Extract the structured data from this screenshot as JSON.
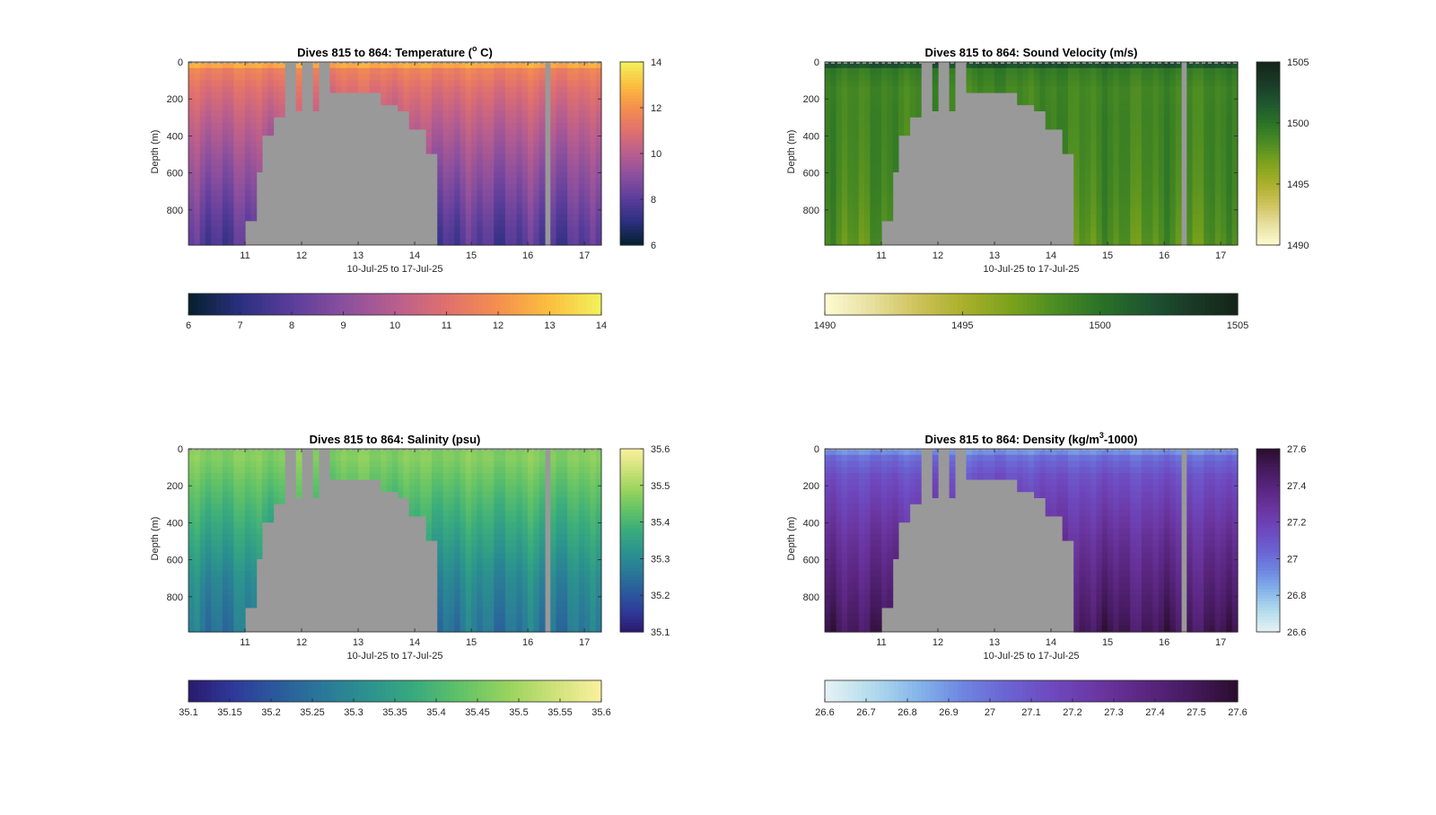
{
  "figure": {
    "background": "#ffffff",
    "panel_bg": "#999999",
    "dive_range": "Dives 815 to 864"
  },
  "chart_data": [
    {
      "type": "heatmap",
      "id": "temperature",
      "title": "Dives 815 to 864: Temperature (",
      "title_sup": "o",
      "title_tail": " C)",
      "xlabel": "10-Jul-25 to 17-Jul-25",
      "ylabel": "Depth (m)",
      "x_ticks": [
        "11",
        "12",
        "13",
        "14",
        "15",
        "16",
        "17"
      ],
      "x_tick_values": [
        11,
        12,
        13,
        14,
        15,
        16,
        17
      ],
      "xlim": [
        10.0,
        17.3
      ],
      "y_ticks": [
        "0",
        "200",
        "400",
        "600",
        "800"
      ],
      "y_tick_values": [
        0,
        200,
        400,
        600,
        800
      ],
      "ylim": [
        0,
        990
      ],
      "colorbar_range": [
        6,
        14
      ],
      "colorbar_ticks": [
        "6",
        "8",
        "10",
        "12",
        "14"
      ],
      "h_colorbar_ticks": [
        "6",
        "7",
        "8",
        "9",
        "10",
        "11",
        "12",
        "13",
        "14"
      ],
      "colormap": [
        "#04202c",
        "#2b2f7e",
        "#5a3d9b",
        "#8a4f9e",
        "#b85e8e",
        "#e0706e",
        "#f58f4e",
        "#fbbf3f",
        "#f2f25c"
      ],
      "profile": [
        {
          "depth": 0,
          "value": 13.2
        },
        {
          "depth": 40,
          "value": 11.6
        },
        {
          "depth": 150,
          "value": 10.9
        },
        {
          "depth": 300,
          "value": 10.2
        },
        {
          "depth": 500,
          "value": 9.4
        },
        {
          "depth": 700,
          "value": 8.7
        },
        {
          "depth": 900,
          "value": 8.0
        },
        {
          "depth": 990,
          "value": 7.8
        }
      ]
    },
    {
      "type": "heatmap",
      "id": "sound_velocity",
      "title": "Dives 815 to 864: Sound Velocity (m/s)",
      "xlabel": "10-Jul-25 to 17-Jul-25",
      "ylabel": "Depth (m)",
      "x_ticks": [
        "11",
        "12",
        "13",
        "14",
        "15",
        "16",
        "17"
      ],
      "x_tick_values": [
        11,
        12,
        13,
        14,
        15,
        16,
        17
      ],
      "xlim": [
        10.0,
        17.3
      ],
      "y_ticks": [
        "0",
        "200",
        "400",
        "600",
        "800"
      ],
      "y_tick_values": [
        0,
        200,
        400,
        600,
        800
      ],
      "ylim": [
        0,
        990
      ],
      "colorbar_range": [
        1490,
        1505
      ],
      "colorbar_ticks": [
        "1490",
        "1495",
        "1500",
        "1505"
      ],
      "h_colorbar_ticks": [
        "1490",
        "1495",
        "1500",
        "1505"
      ],
      "colormap": [
        "#fdfbd2",
        "#e8e0a0",
        "#cfc25c",
        "#aab02c",
        "#7ea31c",
        "#4d8d22",
        "#2a7327",
        "#1e5530",
        "#1a3a26",
        "#142419"
      ],
      "profile": [
        {
          "depth": 0,
          "value": 1503.5
        },
        {
          "depth": 40,
          "value": 1499.5
        },
        {
          "depth": 150,
          "value": 1498.8
        },
        {
          "depth": 300,
          "value": 1498.9
        },
        {
          "depth": 500,
          "value": 1498.8
        },
        {
          "depth": 700,
          "value": 1498.6
        },
        {
          "depth": 900,
          "value": 1498.2
        },
        {
          "depth": 990,
          "value": 1497.9
        }
      ]
    },
    {
      "type": "heatmap",
      "id": "salinity",
      "title": "Dives 815 to 864: Salinity (psu)",
      "xlabel": "10-Jul-25 to 17-Jul-25",
      "ylabel": "Depth (m)",
      "x_ticks": [
        "11",
        "12",
        "13",
        "14",
        "15",
        "16",
        "17"
      ],
      "x_tick_values": [
        11,
        12,
        13,
        14,
        15,
        16,
        17
      ],
      "xlim": [
        10.0,
        17.3
      ],
      "y_ticks": [
        "0",
        "200",
        "400",
        "600",
        "800"
      ],
      "y_tick_values": [
        0,
        200,
        400,
        600,
        800
      ],
      "ylim": [
        0,
        990
      ],
      "colorbar_range": [
        35.1,
        35.6
      ],
      "colorbar_ticks": [
        "35.1",
        "35.2",
        "35.3",
        "35.4",
        "35.5",
        "35.6"
      ],
      "h_colorbar_ticks": [
        "35.1",
        "35.15",
        "35.2",
        "35.25",
        "35.3",
        "35.35",
        "35.4",
        "35.45",
        "35.5",
        "35.55",
        "35.6"
      ],
      "colormap": [
        "#2a1a6e",
        "#2f3a9a",
        "#2a5c9c",
        "#2a7a98",
        "#2c948d",
        "#3aac7c",
        "#64c366",
        "#9ad45e",
        "#cfe27a",
        "#fbf0a0"
      ],
      "profile": [
        {
          "depth": 0,
          "value": 35.46
        },
        {
          "depth": 40,
          "value": 35.47
        },
        {
          "depth": 150,
          "value": 35.44
        },
        {
          "depth": 300,
          "value": 35.4
        },
        {
          "depth": 500,
          "value": 35.35
        },
        {
          "depth": 700,
          "value": 35.3
        },
        {
          "depth": 900,
          "value": 35.27
        },
        {
          "depth": 990,
          "value": 35.26
        }
      ]
    },
    {
      "type": "heatmap",
      "id": "density",
      "title": "Dives 815 to 864: Density (kg/m",
      "title_sup": "3",
      "title_tail": "-1000)",
      "xlabel": "10-Jul-25 to 17-Jul-25",
      "ylabel": "Depth (m)",
      "x_ticks": [
        "11",
        "12",
        "13",
        "14",
        "15",
        "16",
        "17"
      ],
      "x_tick_values": [
        11,
        12,
        13,
        14,
        15,
        16,
        17
      ],
      "xlim": [
        10.0,
        17.3
      ],
      "y_ticks": [
        "0",
        "200",
        "400",
        "600",
        "800"
      ],
      "y_tick_values": [
        0,
        200,
        400,
        600,
        800
      ],
      "ylim": [
        0,
        990
      ],
      "colorbar_range": [
        26.6,
        27.6
      ],
      "colorbar_ticks": [
        "26.6",
        "26.8",
        "27",
        "27.2",
        "27.4",
        "27.6"
      ],
      "h_colorbar_ticks": [
        "26.6",
        "26.7",
        "26.8",
        "26.9",
        "27",
        "27.1",
        "27.2",
        "27.3",
        "27.4",
        "27.5",
        "27.6"
      ],
      "colormap": [
        "#e6f2f4",
        "#b5dcec",
        "#86b6ea",
        "#6e86e0",
        "#6b62d2",
        "#6e48be",
        "#6a36a0",
        "#5a2680",
        "#451a5e",
        "#2a0d2c"
      ],
      "profile": [
        {
          "depth": 0,
          "value": 26.85
        },
        {
          "depth": 40,
          "value": 27.0
        },
        {
          "depth": 150,
          "value": 27.12
        },
        {
          "depth": 300,
          "value": 27.2
        },
        {
          "depth": 500,
          "value": 27.3
        },
        {
          "depth": 700,
          "value": 27.38
        },
        {
          "depth": 900,
          "value": 27.46
        },
        {
          "depth": 990,
          "value": 27.5
        }
      ]
    }
  ],
  "gaps": {
    "no_data_color": "#999999",
    "bathymetry_mask": [
      {
        "x": 11.05,
        "depth": 850
      },
      {
        "x": 11.2,
        "depth": 600
      },
      {
        "x": 11.35,
        "depth": 390
      },
      {
        "x": 11.55,
        "depth": 300
      },
      {
        "x": 11.7,
        "depth": 270
      },
      {
        "x": 12.05,
        "depth": 250
      },
      {
        "x": 12.5,
        "depth": 180
      },
      {
        "x": 12.8,
        "depth": 150
      },
      {
        "x": 13.2,
        "depth": 170
      },
      {
        "x": 13.45,
        "depth": 220
      },
      {
        "x": 13.7,
        "depth": 280
      },
      {
        "x": 13.95,
        "depth": 360
      },
      {
        "x": 14.2,
        "depth": 500
      },
      {
        "x": 14.4,
        "depth": 990
      }
    ],
    "vertical_gaps": [
      [
        11.75,
        11.87
      ],
      [
        12.03,
        12.15
      ],
      [
        12.33,
        12.45
      ],
      [
        16.3,
        16.43
      ]
    ]
  }
}
